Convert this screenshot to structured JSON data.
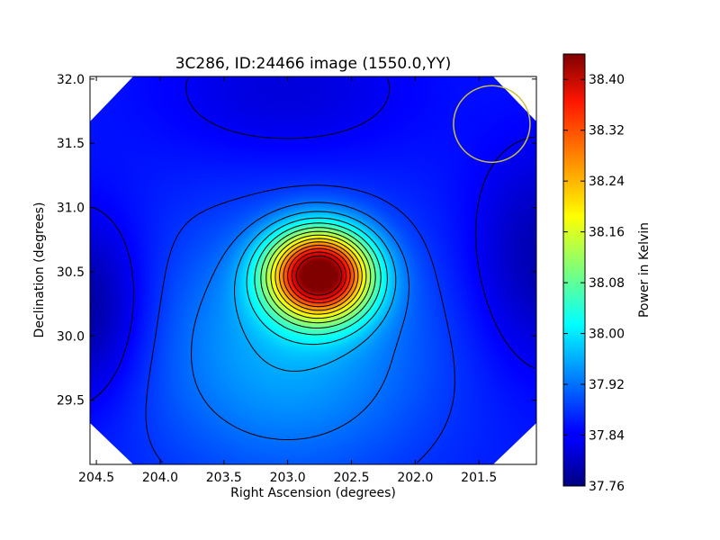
{
  "chart_data": {
    "type": "heatmap",
    "title": "3C286, ID:24466 image (1550.0,YY)",
    "xlabel": "Right Ascension (degrees)",
    "ylabel": "Declination (degrees)",
    "colorbar_label": "Power in Kelvin",
    "colormap": "jet",
    "x_reversed": true,
    "xlim": [
      204.55,
      201.05
    ],
    "ylim": [
      29.0,
      32.02
    ],
    "zlim": [
      37.76,
      38.44
    ],
    "x_ticks": [
      204.5,
      204.0,
      203.5,
      203.0,
      202.5,
      202.0,
      201.5
    ],
    "x_tick_labels": [
      "204.5",
      "204.0",
      "203.5",
      "203.0",
      "202.5",
      "202.0",
      "201.5"
    ],
    "y_ticks": [
      29.5,
      30.0,
      30.5,
      31.0,
      31.5,
      32.0
    ],
    "y_tick_labels": [
      "29.5",
      "30.0",
      "30.5",
      "31.0",
      "31.5",
      "32.0"
    ],
    "colorbar_ticks": [
      37.76,
      37.84,
      37.92,
      38.0,
      38.08,
      38.16,
      38.24,
      38.32,
      38.4
    ],
    "colorbar_tick_labels": [
      "37.76",
      "37.84",
      "37.92",
      "38.00",
      "38.08",
      "38.16",
      "38.24",
      "38.32",
      "38.40"
    ],
    "peak": {
      "ra": 202.75,
      "dec": 30.48,
      "value": 38.44
    },
    "contours": "black",
    "beam_circle": {
      "ra": 201.4,
      "dec": 31.65,
      "radius_deg": 0.3,
      "color": "#c8c040"
    }
  }
}
